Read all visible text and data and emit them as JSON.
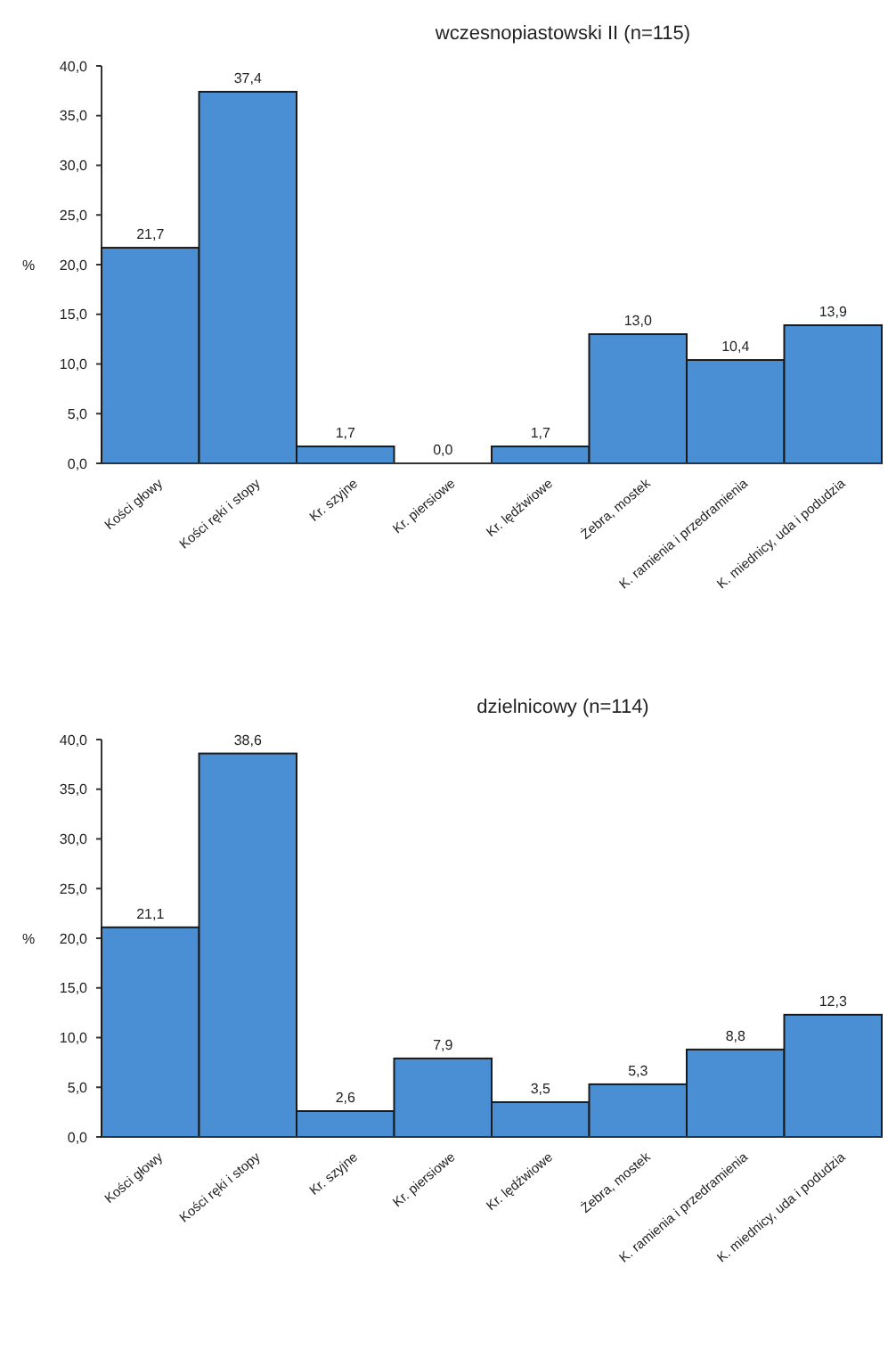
{
  "chart_data": [
    {
      "type": "bar",
      "title": "wczesnopiastowski II (n=115)",
      "ylabel": "%",
      "categories": [
        "Kości głowy",
        "Kości ręki i stopy",
        "Kr. szyjne",
        "Kr. piersiowe",
        "Kr. lędźwiowe",
        "Żebra, mostek",
        "K. ramienia i przedramienia",
        "K. miednicy, uda i podudzia"
      ],
      "values": [
        21.7,
        37.4,
        1.7,
        0.0,
        1.7,
        13.0,
        10.4,
        13.9
      ],
      "value_labels": [
        "21,7",
        "37,4",
        "1,7",
        "0,0",
        "1,7",
        "13,0",
        "10,4",
        "13,9"
      ],
      "color": "#4a8fd4",
      "ylim": [
        0,
        40
      ],
      "yticks": [
        {
          "value": 0,
          "label": "0,0"
        },
        {
          "value": 5,
          "label": "5,0"
        },
        {
          "value": 10,
          "label": "10,0"
        },
        {
          "value": 15,
          "label": "15,0"
        },
        {
          "value": 20,
          "label": "20,0"
        },
        {
          "value": 25,
          "label": "25,0"
        },
        {
          "value": 30,
          "label": "30,0"
        },
        {
          "value": 35,
          "label": "35,0"
        },
        {
          "value": 40,
          "label": "40,0"
        }
      ]
    },
    {
      "type": "bar",
      "title": "dzielnicowy (n=114)",
      "ylabel": "%",
      "categories": [
        "Kości głowy",
        "Kości ręki i stopy",
        "Kr. szyjne",
        "Kr. piersiowe",
        "Kr. lędźwiowe",
        "Żebra, mostek",
        "K. ramienia i przedramienia",
        "K. miednicy, uda i podudzia"
      ],
      "values": [
        21.1,
        38.6,
        2.6,
        7.9,
        3.5,
        5.3,
        8.8,
        12.3
      ],
      "value_labels": [
        "21,1",
        "38,6",
        "2,6",
        "7,9",
        "3,5",
        "5,3",
        "8,8",
        "12,3"
      ],
      "color": "#4a8fd4",
      "ylim": [
        0,
        40
      ],
      "yticks": [
        {
          "value": 0,
          "label": "0,0"
        },
        {
          "value": 5,
          "label": "5,0"
        },
        {
          "value": 10,
          "label": "10,0"
        },
        {
          "value": 15,
          "label": "15,0"
        },
        {
          "value": 20,
          "label": "20,0"
        },
        {
          "value": 25,
          "label": "25,0"
        },
        {
          "value": 30,
          "label": "30,0"
        },
        {
          "value": 35,
          "label": "35,0"
        },
        {
          "value": 40,
          "label": "40,0"
        }
      ]
    }
  ]
}
